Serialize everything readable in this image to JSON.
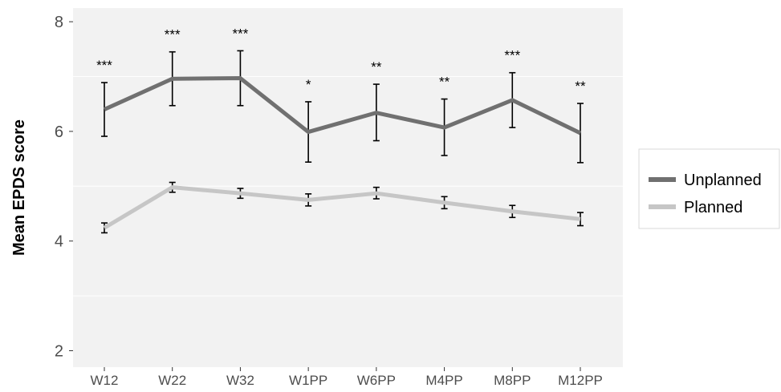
{
  "chart_data": {
    "type": "line",
    "title": "",
    "xlabel": "",
    "ylabel": "Mean EPDS score",
    "categories": [
      "W12",
      "W22",
      "W32",
      "W1PP",
      "W6PP",
      "M4PP",
      "M8PP",
      "M12PP"
    ],
    "ylim": [
      1.7,
      8.25
    ],
    "yticks": [
      2,
      4,
      6,
      8
    ],
    "grid": true,
    "legend_position": "right",
    "series": [
      {
        "name": "Unplanned",
        "color": "#707070",
        "values": [
          6.4,
          6.96,
          6.97,
          5.99,
          6.34,
          6.07,
          6.57,
          5.97
        ],
        "ci_low": [
          5.91,
          6.47,
          6.47,
          5.44,
          5.83,
          5.56,
          6.07,
          5.43
        ],
        "ci_high": [
          6.89,
          7.45,
          7.47,
          6.54,
          6.86,
          6.59,
          7.07,
          6.51
        ]
      },
      {
        "name": "Planned",
        "color": "#c6c6c6",
        "values": [
          4.24,
          4.98,
          4.87,
          4.75,
          4.87,
          4.7,
          4.54,
          4.4
        ],
        "ci_low": [
          4.15,
          4.89,
          4.78,
          4.64,
          4.77,
          4.59,
          4.43,
          4.28
        ],
        "ci_high": [
          4.33,
          5.07,
          4.96,
          4.86,
          4.98,
          4.81,
          4.65,
          4.52
        ]
      }
    ],
    "annotations": [
      "***",
      "***",
      "***",
      "*",
      "**",
      "**",
      "***",
      "**"
    ]
  }
}
